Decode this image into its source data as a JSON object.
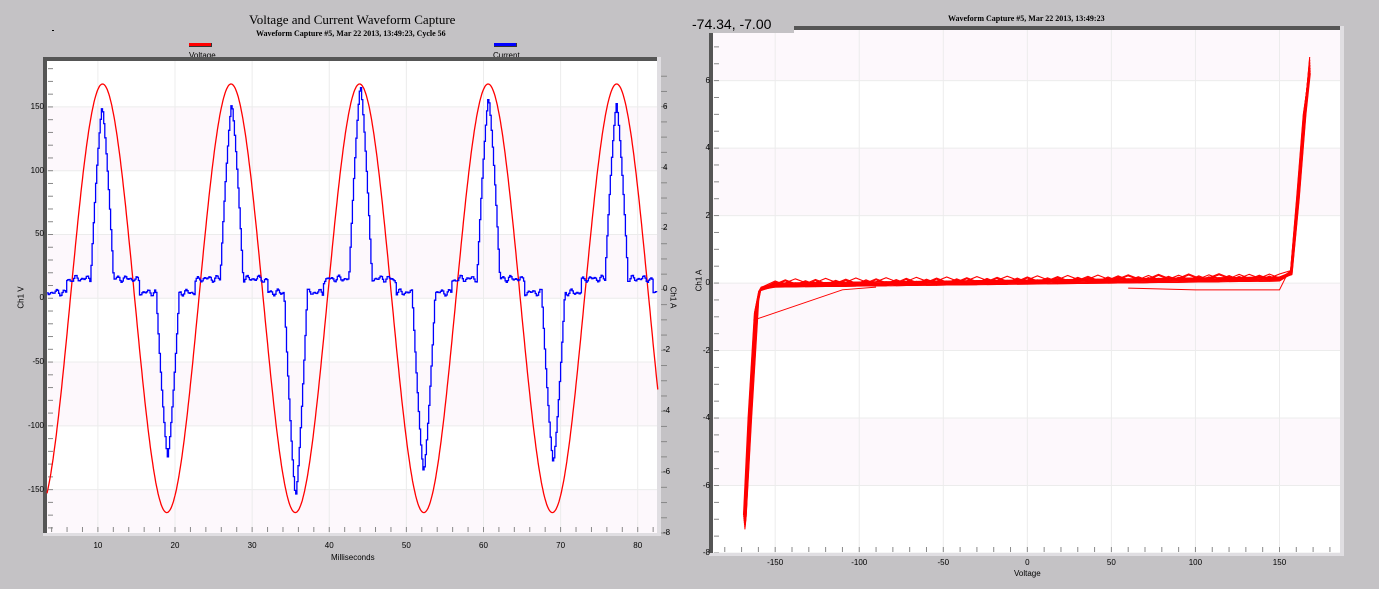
{
  "left_panel": {
    "title": "Voltage and Current Waveform Capture",
    "subtitle": "Waveform Capture #5, Mar 22 2013, 13:49:23,  Cycle 56",
    "legend": [
      {
        "label": "Voltage",
        "color": "#ff0000"
      },
      {
        "label": "Current",
        "color": "#0000ff"
      }
    ],
    "x_axis_title": "Milliseconds",
    "y_left_title": "Ch1 V",
    "y_right_title": "Ch1 A"
  },
  "right_panel": {
    "coord_readout": "-74.34, -7.00",
    "subtitle": "Waveform Capture #5, Mar 22 2013, 13:49:23",
    "x_axis_title": "Voltage",
    "y_axis_title": "Ch1 A"
  },
  "chart_data": [
    {
      "type": "line",
      "title": "Voltage and Current Waveform Capture",
      "subtitle": "Waveform Capture #5, Mar 22 2013, 13:49:23,  Cycle 56",
      "xlabel": "Milliseconds",
      "ylabel": "Ch1 V",
      "y2label": "Ch1 A",
      "xlim": [
        3.4,
        82.5
      ],
      "ylim": [
        -184,
        186
      ],
      "y2lim": [
        -8,
        7.5
      ],
      "xticks": [
        10,
        20,
        30,
        40,
        50,
        60,
        70,
        80
      ],
      "yticks": [
        -150,
        -100,
        -50,
        0,
        50,
        100,
        150
      ],
      "y2ticks": [
        -8,
        -6,
        -4,
        -2,
        0,
        2,
        4,
        6
      ],
      "grid": true,
      "legend_position": "top",
      "series": [
        {
          "name": "Voltage",
          "axis": "left",
          "color": "#ff0000",
          "description": "60 Hz sine, amplitude ~168 V, peaks near 10.6, 27.3, 43.9, 60.6, 77.3 ms",
          "amplitude": 168,
          "frequency_hz": 60,
          "first_peak_ms": 10.6
        },
        {
          "name": "Current",
          "axis": "right",
          "color": "#0000ff",
          "description": "Rectifier-type pulsed current, ~0.3 A baseline, narrow pulses at voltage peaks",
          "positive_peaks": [
            {
              "t": 10.5,
              "a": 6.0
            },
            {
              "t": 27.3,
              "a": 6.1
            },
            {
              "t": 44.0,
              "a": 6.7
            },
            {
              "t": 60.6,
              "a": 6.3
            },
            {
              "t": 77.2,
              "a": 6.1
            }
          ],
          "negative_peaks": [
            {
              "t": 19.0,
              "a": -5.5
            },
            {
              "t": 35.6,
              "a": -6.8
            },
            {
              "t": 52.2,
              "a": -6.0
            },
            {
              "t": 69.0,
              "a": -5.7
            }
          ],
          "baseline_positive_half": 0.3,
          "baseline_negative_half": -0.1
        }
      ]
    },
    {
      "type": "scatter",
      "title": "Waveform Capture #5, Mar 22 2013, 13:49:23",
      "xlabel": "Voltage",
      "ylabel": "Ch1 A",
      "xlim": [
        -187,
        186
      ],
      "ylim": [
        -8,
        7.5
      ],
      "xticks": [
        -150,
        -100,
        -50,
        0,
        50,
        100,
        150
      ],
      "yticks": [
        -8,
        -6,
        -4,
        -2,
        0,
        2,
        4,
        6
      ],
      "grid": true,
      "series": [
        {
          "name": "Ch1 A vs Voltage",
          "color": "#ff0000",
          "description": "V-I characteristic: near-flat ~0 A from -160 V to +158 V, steep rise to ~6.7 A at +168 V, steep fall to ~-7.3 A at -168 V",
          "key_points": [
            [
              -168,
              -7.3
            ],
            [
              -165,
              -4.0
            ],
            [
              -160,
              -0.3
            ],
            [
              -100,
              -0.1
            ],
            [
              0,
              0.05
            ],
            [
              100,
              0.15
            ],
            [
              158,
              0.3
            ],
            [
              163,
              3.0
            ],
            [
              168,
              6.7
            ]
          ]
        }
      ],
      "cursor_readout": "-74.34, -7.00"
    }
  ]
}
